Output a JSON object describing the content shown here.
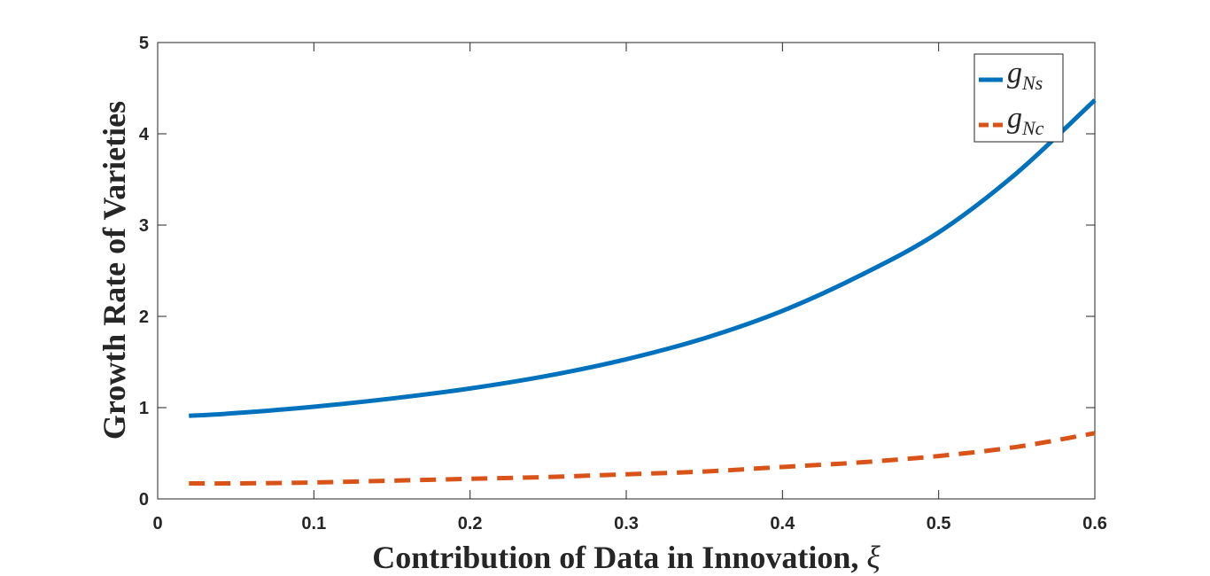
{
  "chart_data": {
    "type": "line",
    "xlabel": "Contribution of Data in Innovation, ",
    "xlabel_symbol": "ξ",
    "ylabel": "Growth Rate of Varieties",
    "xlim": [
      0,
      0.6
    ],
    "ylim": [
      0,
      5
    ],
    "xticks": [
      0,
      0.1,
      0.2,
      0.3,
      0.4,
      0.5,
      0.6
    ],
    "xtick_labels": [
      "0",
      "0.1",
      "0.2",
      "0.3",
      "0.4",
      "0.5",
      "0.6"
    ],
    "yticks": [
      0,
      1,
      2,
      3,
      4,
      5
    ],
    "ytick_labels": [
      "0",
      "1",
      "2",
      "3",
      "4",
      "5"
    ],
    "grid": false,
    "legend_position": "top-right",
    "x": [
      0.02,
      0.05,
      0.1,
      0.15,
      0.2,
      0.25,
      0.3,
      0.35,
      0.4,
      0.45,
      0.5,
      0.55,
      0.6
    ],
    "series": [
      {
        "name_base": "g",
        "name_sub": "Ns",
        "color": "#0072bd",
        "style": "solid",
        "values": [
          0.91,
          0.94,
          1.01,
          1.1,
          1.21,
          1.35,
          1.53,
          1.76,
          2.06,
          2.45,
          2.92,
          3.57,
          4.37
        ]
      },
      {
        "name_base": "g",
        "name_sub": "Nc",
        "color": "#d95319",
        "style": "dashed",
        "values": [
          0.17,
          0.17,
          0.18,
          0.2,
          0.22,
          0.24,
          0.27,
          0.3,
          0.35,
          0.4,
          0.47,
          0.57,
          0.72
        ]
      }
    ]
  }
}
